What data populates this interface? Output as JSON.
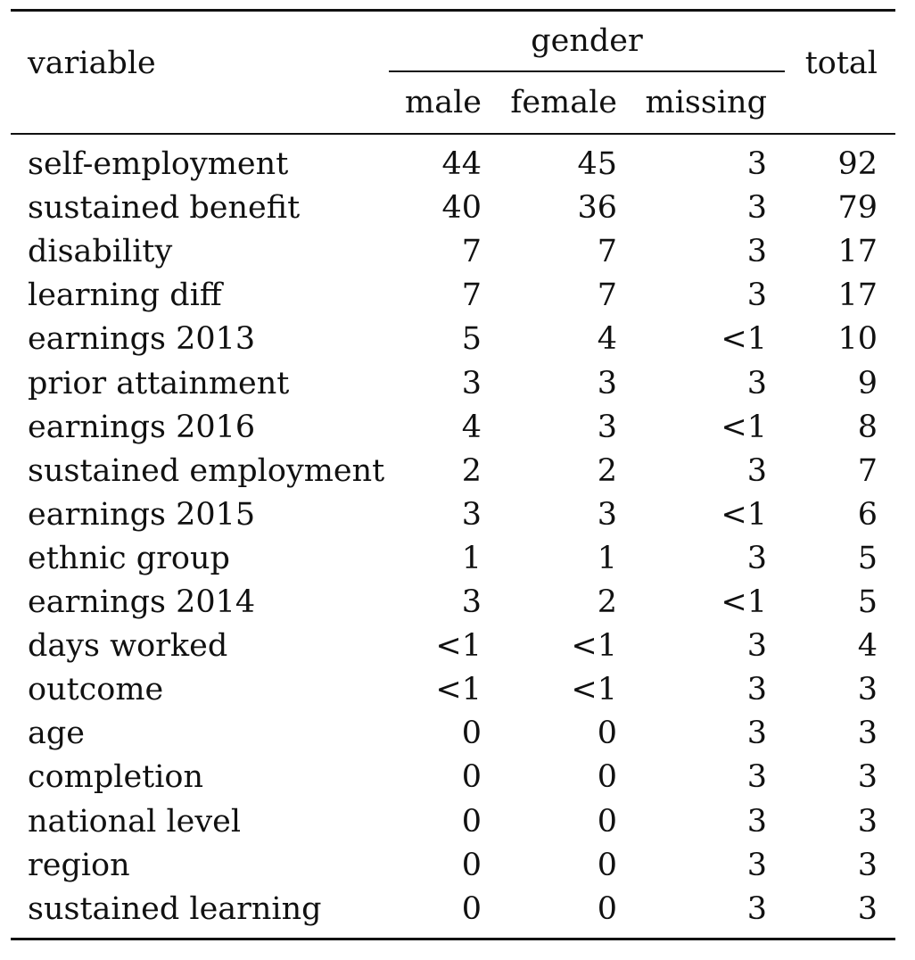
{
  "table": {
    "headers": {
      "variable": "variable",
      "group": "gender",
      "male": "male",
      "female": "female",
      "missing": "missing",
      "total": "total"
    },
    "rows": [
      {
        "variable": "self-employment",
        "male": "44",
        "female": "45",
        "missing": "3",
        "total": "92"
      },
      {
        "variable": "sustained benefit",
        "male": "40",
        "female": "36",
        "missing": "3",
        "total": "79"
      },
      {
        "variable": "disability",
        "male": "7",
        "female": "7",
        "missing": "3",
        "total": "17"
      },
      {
        "variable": "learning diff",
        "male": "7",
        "female": "7",
        "missing": "3",
        "total": "17"
      },
      {
        "variable": "earnings 2013",
        "male": "5",
        "female": "4",
        "missing": "<1",
        "total": "10"
      },
      {
        "variable": "prior attainment",
        "male": "3",
        "female": "3",
        "missing": "3",
        "total": "9"
      },
      {
        "variable": "earnings 2016",
        "male": "4",
        "female": "3",
        "missing": "<1",
        "total": "8"
      },
      {
        "variable": "sustained employment",
        "male": "2",
        "female": "2",
        "missing": "3",
        "total": "7"
      },
      {
        "variable": "earnings 2015",
        "male": "3",
        "female": "3",
        "missing": "<1",
        "total": "6"
      },
      {
        "variable": "ethnic group",
        "male": "1",
        "female": "1",
        "missing": "3",
        "total": "5"
      },
      {
        "variable": "earnings 2014",
        "male": "3",
        "female": "2",
        "missing": "<1",
        "total": "5"
      },
      {
        "variable": "days worked",
        "male": "<1",
        "female": "<1",
        "missing": "3",
        "total": "4"
      },
      {
        "variable": "outcome",
        "male": "<1",
        "female": "<1",
        "missing": "3",
        "total": "3"
      },
      {
        "variable": "age",
        "male": "0",
        "female": "0",
        "missing": "3",
        "total": "3"
      },
      {
        "variable": "completion",
        "male": "0",
        "female": "0",
        "missing": "3",
        "total": "3"
      },
      {
        "variable": "national level",
        "male": "0",
        "female": "0",
        "missing": "3",
        "total": "3"
      },
      {
        "variable": "region",
        "male": "0",
        "female": "0",
        "missing": "3",
        "total": "3"
      },
      {
        "variable": "sustained learning",
        "male": "0",
        "female": "0",
        "missing": "3",
        "total": "3"
      }
    ]
  }
}
